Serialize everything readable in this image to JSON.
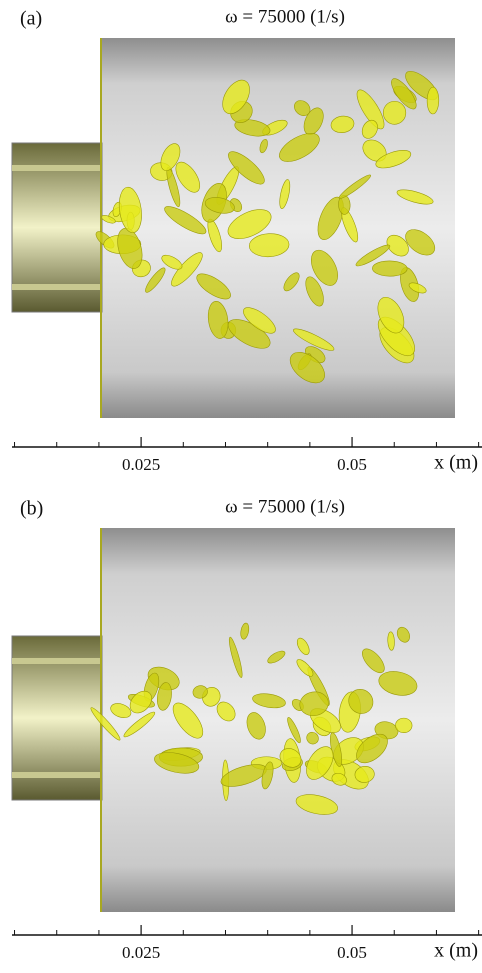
{
  "panels": [
    {
      "label": "(a)",
      "title": "ω = 75000 (1/s)",
      "axis": {
        "label": "x (m)",
        "xlim": [
          0.0097,
          0.0654
        ],
        "ticks": [
          0.025,
          0.05
        ],
        "minor_ticks": [
          0.01,
          0.015,
          0.02,
          0.03,
          0.035,
          0.04,
          0.045,
          0.055,
          0.06,
          0.065
        ]
      }
    },
    {
      "label": "(b)",
      "title": "ω = 75000 (1/s)",
      "axis": {
        "label": "x (m)",
        "xlim": [
          0.0097,
          0.0654
        ],
        "ticks": [
          0.025,
          0.05
        ],
        "minor_ticks": [
          0.01,
          0.015,
          0.02,
          0.03,
          0.035,
          0.04,
          0.045,
          0.055,
          0.06,
          0.065
        ]
      }
    }
  ]
}
